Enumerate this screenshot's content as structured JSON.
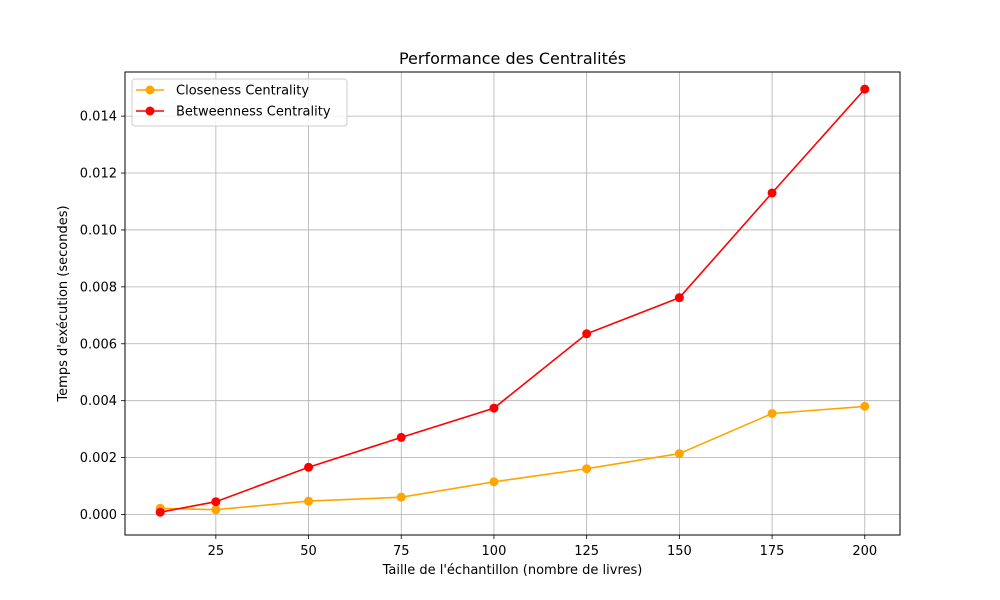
{
  "chart_data": {
    "type": "line",
    "title": "Performance des Centralités",
    "xlabel": "Taille de l'échantillon (nombre de livres)",
    "ylabel": "Temps d'exécution (secondes)",
    "x": [
      10,
      25,
      50,
      75,
      100,
      125,
      150,
      175,
      200
    ],
    "xlim": [
      0.5,
      209.5
    ],
    "ylim": [
      -0.00072,
      0.01555
    ],
    "xticks": [
      25,
      50,
      75,
      100,
      125,
      150,
      175,
      200
    ],
    "xtick_labels": [
      "25",
      "50",
      "75",
      "100",
      "125",
      "150",
      "175",
      "200"
    ],
    "yticks": [
      0,
      0.002,
      0.004,
      0.006,
      0.008,
      0.01,
      0.012,
      0.014
    ],
    "ytick_labels": [
      "0.000",
      "0.002",
      "0.004",
      "0.006",
      "0.008",
      "0.010",
      "0.012",
      "0.014"
    ],
    "grid": true,
    "legend_position": "top-left",
    "series": [
      {
        "name": "Closeness Centrality",
        "color": "#ffa500",
        "marker": "circle",
        "values": [
          0.00022,
          0.00017,
          0.00047,
          0.00061,
          0.00115,
          0.00161,
          0.00214,
          0.00355,
          0.0038
        ]
      },
      {
        "name": "Betweenness Centrality",
        "color": "#ff0000",
        "marker": "circle",
        "values": [
          8e-05,
          0.00045,
          0.00166,
          0.00271,
          0.00374,
          0.00635,
          0.00762,
          0.0113,
          0.01495
        ]
      }
    ]
  }
}
